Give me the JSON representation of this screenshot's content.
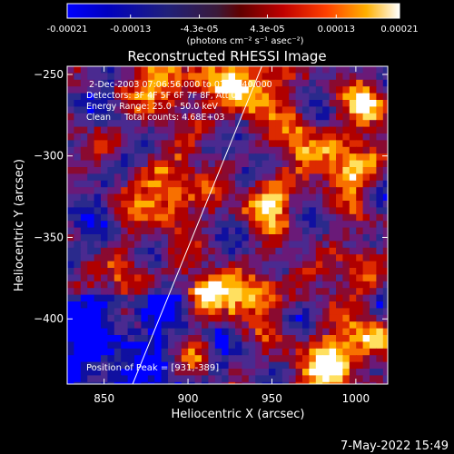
{
  "chart_data": {
    "type": "heatmap",
    "title": "Reconstructed RHESSI Image",
    "xlabel": "Heliocentric X (arcsec)",
    "ylabel": "Heliocentric Y (arcsec)",
    "xlim": [
      828,
      1019
    ],
    "ylim": [
      -440,
      -245
    ],
    "x_ticks": [
      "850",
      "900",
      "950",
      "1000"
    ],
    "x_tick_values": [
      850,
      900,
      950,
      1000
    ],
    "y_ticks": [
      "-250",
      "-300",
      "-350",
      "-400"
    ],
    "y_tick_values": [
      -250,
      -300,
      -350,
      -400
    ],
    "colorbar": {
      "tick_labels": [
        "-0.00021",
        "-0.00013",
        "-4.3e-05",
        "4.3e-05",
        "0.00013",
        "0.00021"
      ],
      "tick_values": [
        -0.00021,
        -0.00013,
        -4.3e-05,
        4.3e-05,
        0.00013,
        0.00021
      ],
      "range": [
        -0.00021,
        0.00021
      ],
      "units_label": "(photons cm⁻² s⁻¹ asec⁻²)"
    },
    "annotations": [
      "2-Dec-2003 07:06:56.000 to 07:08:40.000",
      "Detectors: 3F 4F 5F 6F 7F 8F, Att 0",
      "Energy Range: 25.0 - 50.0 keV",
      "Clean     Total counts: 4.68E+03"
    ],
    "peak_label": "Position of Peak = [931,-389]",
    "peak_position": [
      931,
      -389
    ],
    "limb_line": [
      [
        867,
        -440
      ],
      [
        944,
        -245
      ]
    ],
    "grid": false,
    "colormap": [
      "#0000ff",
      "#1010a0",
      "#2a2a8c",
      "#4a2a90",
      "#6a1a78",
      "#8a0a30",
      "#b00000",
      "#dd2a00",
      "#f87000",
      "#ffb000",
      "#ffe060",
      "#ffffff"
    ]
  },
  "footer": {
    "timestamp": "7-May-2022 15:49"
  }
}
